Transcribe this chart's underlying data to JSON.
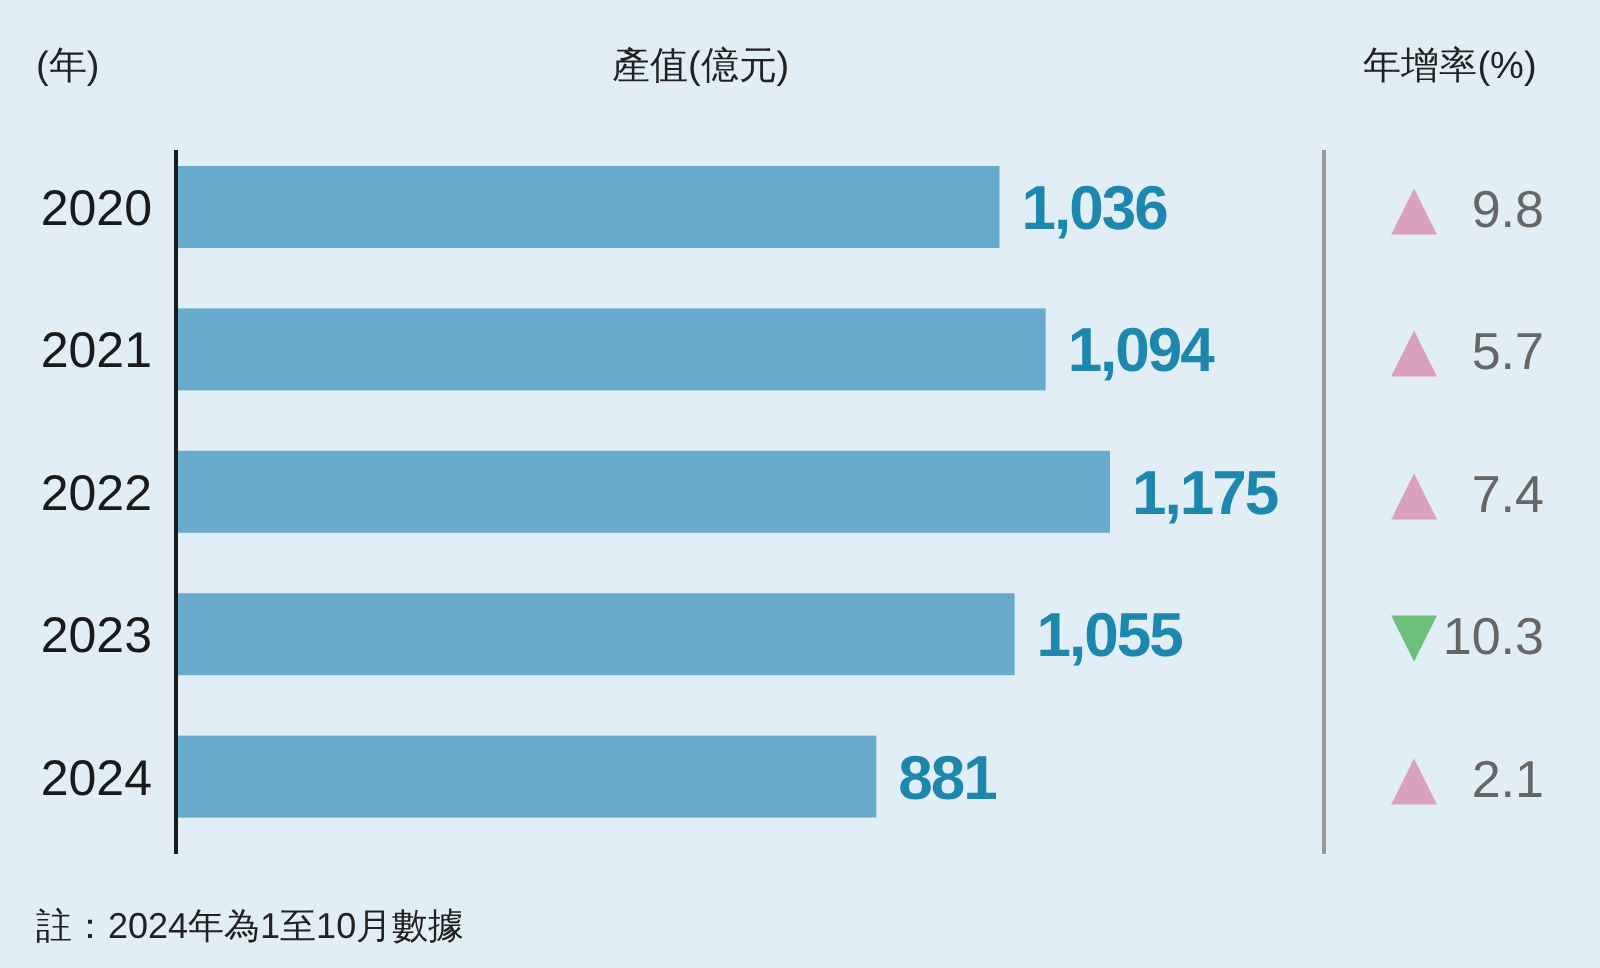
{
  "chart_data": [
    {
      "type": "bar",
      "orientation": "horizontal",
      "title": "產值(億元)",
      "ylabel": "(年)",
      "categories": [
        "2020",
        "2021",
        "2022",
        "2023",
        "2024"
      ],
      "values": [
        1036,
        1094,
        1175,
        1055,
        881
      ],
      "color": "#69abcc",
      "value_labels": [
        "1,036",
        "1,094",
        "1,175",
        "1,055",
        "881"
      ],
      "annotations": [
        "註：2024年為1至10月數據"
      ]
    },
    {
      "type": "other",
      "title": "年增率(%)",
      "annotations": [
        "▲ 9.8",
        "▲ 5.7",
        "▲ 7.4",
        "▼10.3",
        "▲ 2.1"
      ],
      "colors": [
        "#d9a1bb",
        "#d9a1bb",
        "#d9a1bb",
        "#6dbf7a",
        "#d9a1bb"
      ]
    }
  ]
}
